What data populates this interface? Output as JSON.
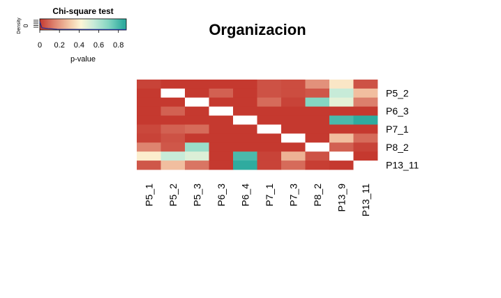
{
  "chart_data": {
    "type": "heatmap",
    "title": "Organizacion",
    "columns": [
      "P5_1",
      "P5_2",
      "P5_3",
      "P6_3",
      "P6_4",
      "P7_1",
      "P7_3",
      "P8_2",
      "P13_9",
      "P13_11"
    ],
    "rows": [
      "",
      "P5_2",
      "",
      "P6_3",
      "",
      "P7_1",
      "",
      "P8_2",
      "",
      "P13_11"
    ],
    "row_tick_labels": [
      "P5_2",
      "P6_3",
      "P7_1",
      "P8_2",
      "P13_11"
    ],
    "values": [
      [
        0.02,
        0.0,
        0.0,
        0.0,
        0.0,
        0.05,
        0.04,
        0.18,
        0.38,
        0.05
      ],
      [
        0.0,
        null,
        0.0,
        0.08,
        0.0,
        0.05,
        0.04,
        0.06,
        0.55,
        0.28
      ],
      [
        0.0,
        0.0,
        null,
        0.0,
        0.0,
        0.1,
        0.02,
        0.7,
        0.48,
        0.14
      ],
      [
        0.0,
        0.08,
        0.0,
        null,
        0.0,
        0.0,
        0.0,
        0.0,
        0.0,
        0.0
      ],
      [
        0.0,
        0.0,
        0.0,
        0.0,
        null,
        0.0,
        0.0,
        0.0,
        0.8,
        0.85
      ],
      [
        0.03,
        0.08,
        0.1,
        0.0,
        0.0,
        null,
        0.0,
        0.0,
        0.0,
        0.0
      ],
      [
        0.02,
        0.05,
        0.0,
        0.0,
        0.0,
        0.0,
        null,
        0.0,
        0.28,
        0.1
      ],
      [
        0.15,
        0.06,
        0.65,
        0.0,
        0.0,
        0.0,
        0.0,
        null,
        0.08,
        0.02
      ],
      [
        0.4,
        0.55,
        0.5,
        0.0,
        0.8,
        0.02,
        0.25,
        0.05,
        null,
        0.0
      ],
      [
        0.06,
        0.28,
        0.12,
        0.0,
        0.85,
        0.02,
        0.1,
        0.01,
        0.0,
        null
      ]
    ],
    "color_scale": {
      "stops": [
        {
          "value": 0.0,
          "color": "#c5392f"
        },
        {
          "value": 0.15,
          "color": "#de8470"
        },
        {
          "value": 0.3,
          "color": "#f4c7a6"
        },
        {
          "value": 0.42,
          "color": "#fdf6d6"
        },
        {
          "value": 0.55,
          "color": "#c7ebd8"
        },
        {
          "value": 0.7,
          "color": "#84d6c2"
        },
        {
          "value": 0.85,
          "color": "#2fab9f"
        }
      ],
      "missing_color": "#ffffff"
    },
    "legend": {
      "title": "Chi-square test",
      "xlabel": "p-value",
      "ylabel": "Density",
      "y_tick": "0",
      "x_ticks": [
        "0",
        "0.2",
        "0.4",
        "0.6",
        "0.8"
      ],
      "xlim": [
        0,
        0.88
      ],
      "placement": "top-left"
    }
  }
}
